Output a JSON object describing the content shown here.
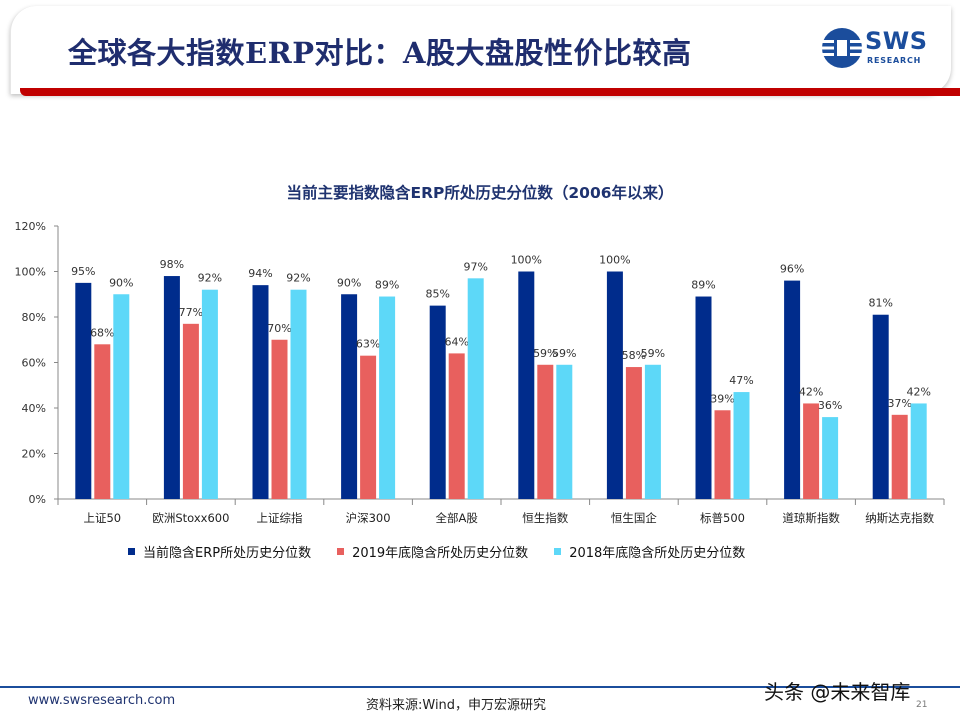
{
  "slide": {
    "title": "全球各大指数ERP对比：A股大盘股性价比较高",
    "logo_text": "SWS",
    "logo_subtext": "RESEARCH",
    "footer_url": "www.swsresearch.com",
    "source": "资料来源:Wind，申万宏源研究",
    "watermark": "头条 @未来智库",
    "page_number": "21"
  },
  "colors": {
    "series1": "#002c8c",
    "series2": "#e8605e",
    "series3": "#5dd8f8",
    "title_blue": "#1f2d6e",
    "accent_red": "#c00000"
  },
  "chart_data": {
    "type": "bar",
    "title": "当前主要指数隐含ERP所处历史分位数（2006年以来）",
    "xlabel": "",
    "ylabel": "",
    "ylim": [
      0,
      120
    ],
    "yticks": [
      "0%",
      "20%",
      "40%",
      "60%",
      "80%",
      "100%",
      "120%"
    ],
    "grid": false,
    "legend_position": "bottom",
    "categories": [
      "上证50",
      "欧洲Stoxx600",
      "上证综指",
      "沪深300",
      "全部A股",
      "恒生指数",
      "恒生国企",
      "标普500",
      "道琼斯指数",
      "纳斯达克指数"
    ],
    "series": [
      {
        "name": "当前隐含ERP所处历史分位数",
        "values": [
          95,
          98,
          94,
          90,
          85,
          100,
          100,
          89,
          96,
          81
        ],
        "labels": [
          "95%",
          "98%",
          "94%",
          "90%",
          "85%",
          "100%",
          "100%",
          "89%",
          "96%",
          "81%"
        ]
      },
      {
        "name": "2019年底隐含所处历史分位数",
        "values": [
          68,
          77,
          70,
          63,
          64,
          59,
          58,
          39,
          42,
          37
        ],
        "labels": [
          "68%",
          "77%",
          "70%",
          "63%",
          "64%",
          "59%",
          "58%",
          "39%",
          "42%",
          "37%"
        ]
      },
      {
        "name": "2018年底隐含所处历史分位数",
        "values": [
          90,
          92,
          92,
          89,
          97,
          59,
          59,
          47,
          36,
          42
        ],
        "labels": [
          "90%",
          "92%",
          "92%",
          "89%",
          "97%",
          "59%",
          "59%",
          "47%",
          "36%",
          "42%"
        ]
      }
    ]
  }
}
